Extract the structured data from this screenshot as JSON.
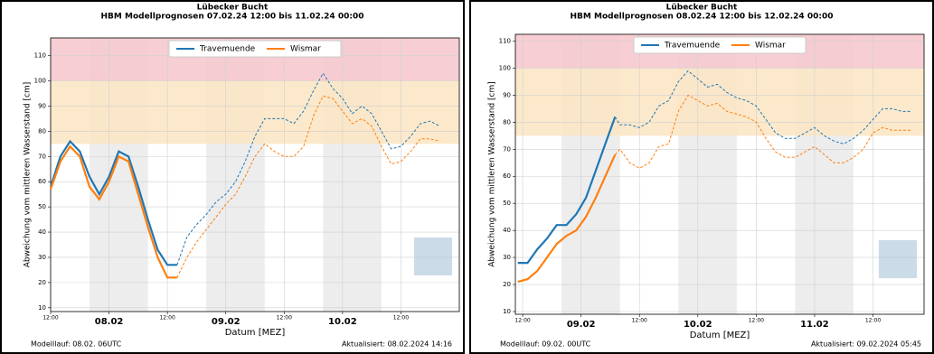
{
  "chart_data": [
    {
      "type": "line",
      "title": "Lübecker Bucht",
      "subtitle": "HBM Modellprognosen 07.02.24 12:00 bis 11.02.24 00:00",
      "xlabel": "Datum [MEZ]",
      "ylabel": "Abweichung vom mittleren Wasserstand [cm]",
      "footer_left": "Modelllauf: 08.02. 06UTC",
      "footer_right": "Aktualisiert: 08.02.2024 14:16",
      "x": [
        0,
        2,
        4,
        6,
        8,
        10,
        12,
        14,
        16,
        18,
        20,
        22,
        24,
        26,
        28,
        30,
        32,
        34,
        36,
        38,
        40,
        42,
        44,
        46,
        48,
        50,
        52,
        54,
        56,
        58,
        60,
        62,
        64,
        66,
        68,
        70,
        72,
        74,
        76,
        78,
        80
      ],
      "series": [
        {
          "name": "Travemuende",
          "color": "#1f77b4",
          "values": [
            58,
            70,
            76,
            72,
            62,
            55,
            62,
            72,
            70,
            58,
            45,
            33,
            27,
            27,
            38,
            43,
            47,
            52,
            55,
            60,
            68,
            78,
            85,
            85,
            85,
            83,
            88,
            96,
            103,
            97,
            93,
            87,
            90,
            87,
            80,
            73,
            74,
            78,
            83,
            84,
            82
          ]
        },
        {
          "name": "Wismar",
          "color": "#ff7f0e",
          "values": [
            57,
            68,
            74,
            70,
            58,
            53,
            60,
            70,
            68,
            55,
            42,
            30,
            22,
            22,
            30,
            36,
            41,
            46,
            51,
            55,
            62,
            70,
            75,
            72,
            70,
            70,
            74,
            86,
            94,
            93,
            88,
            83,
            85,
            82,
            74,
            67,
            68,
            72,
            77,
            77,
            76
          ]
        }
      ],
      "forecast_start": 26,
      "xlim": [
        0,
        84
      ],
      "ylim": [
        8.5,
        117
      ],
      "xticks": [
        {
          "value": 0,
          "label": "12:00"
        },
        {
          "value": 12,
          "label": "08.02"
        },
        {
          "value": 24,
          "label": "12:00"
        },
        {
          "value": 36,
          "label": "09.02"
        },
        {
          "value": 48,
          "label": "12:00"
        },
        {
          "value": 60,
          "label": "10.02"
        },
        {
          "value": 72,
          "label": "12:00"
        }
      ],
      "yticks": [
        10,
        20,
        30,
        40,
        50,
        60,
        70,
        80,
        90,
        100,
        110
      ],
      "grid": true,
      "legend": "upper center",
      "bands": [
        {
          "from": 100,
          "to": 117,
          "color": "#f5c6cb"
        },
        {
          "from": 75,
          "to": 100,
          "color": "#fbe5c2"
        }
      ],
      "shaded": [
        [
          8,
          20
        ],
        [
          32,
          44
        ],
        [
          56,
          68
        ]
      ]
    },
    {
      "type": "line",
      "title": "Lübecker Bucht",
      "subtitle": "HBM Modellprognosen 08.02.24 12:00 bis 12.02.24 00:00",
      "xlabel": "Datum [MEZ]",
      "ylabel": "Abweichung vom mittleren Wasserstand [cm]",
      "footer_left": "Modelllauf: 09.02. 00UTC",
      "footer_right": "Aktualisiert: 09.02.2024 05:45",
      "x": [
        -1,
        1,
        3,
        5,
        7,
        9,
        11,
        13,
        15,
        17,
        19,
        20,
        22,
        24,
        26,
        28,
        30,
        32,
        34,
        36,
        38,
        40,
        42,
        44,
        46,
        48,
        50,
        52,
        54,
        56,
        58,
        60,
        62,
        64,
        66,
        68,
        70,
        72,
        74,
        76,
        78,
        80
      ],
      "series": [
        {
          "name": "Travemuende",
          "color": "#1f77b4",
          "values": [
            28,
            28,
            33,
            37,
            42,
            42,
            46,
            52,
            62,
            72,
            82,
            79,
            79,
            78,
            80,
            86,
            88,
            95,
            99,
            96,
            93,
            94,
            91,
            89,
            88,
            86,
            81,
            76,
            74,
            74,
            76,
            78,
            75,
            73,
            72,
            74,
            77,
            81,
            85,
            85,
            84,
            84
          ]
        },
        {
          "name": "Wismar",
          "color": "#ff7f0e",
          "values": [
            21,
            22,
            25,
            30,
            35,
            38,
            40,
            45,
            52,
            60,
            68,
            70,
            65,
            63,
            65,
            71,
            72,
            84,
            90,
            88,
            86,
            87,
            84,
            83,
            82,
            80,
            74,
            69,
            67,
            67,
            69,
            71,
            68,
            65,
            65,
            67,
            70,
            76,
            78,
            77,
            77,
            77
          ]
        }
      ],
      "forecast_start": 19,
      "xlim": [
        -1.5,
        82.5
      ],
      "ylim": [
        9,
        112.5
      ],
      "xticks": [
        {
          "value": 0,
          "label": "12:00"
        },
        {
          "value": 12,
          "label": "09.02"
        },
        {
          "value": 24,
          "label": "12:00"
        },
        {
          "value": 36,
          "label": "10.02"
        },
        {
          "value": 48,
          "label": "12:00"
        },
        {
          "value": 60,
          "label": "11.02"
        },
        {
          "value": 72,
          "label": "12:00"
        }
      ],
      "yticks": [
        10,
        20,
        30,
        40,
        50,
        60,
        70,
        80,
        90,
        100,
        110
      ],
      "grid": true,
      "legend": "upper center",
      "bands": [
        {
          "from": 100,
          "to": 112.5,
          "color": "#f5c6cb"
        },
        {
          "from": 75,
          "to": 100,
          "color": "#fbe5c2"
        }
      ],
      "shaded": [
        [
          8,
          20
        ],
        [
          32,
          44
        ],
        [
          56,
          68
        ]
      ]
    }
  ]
}
